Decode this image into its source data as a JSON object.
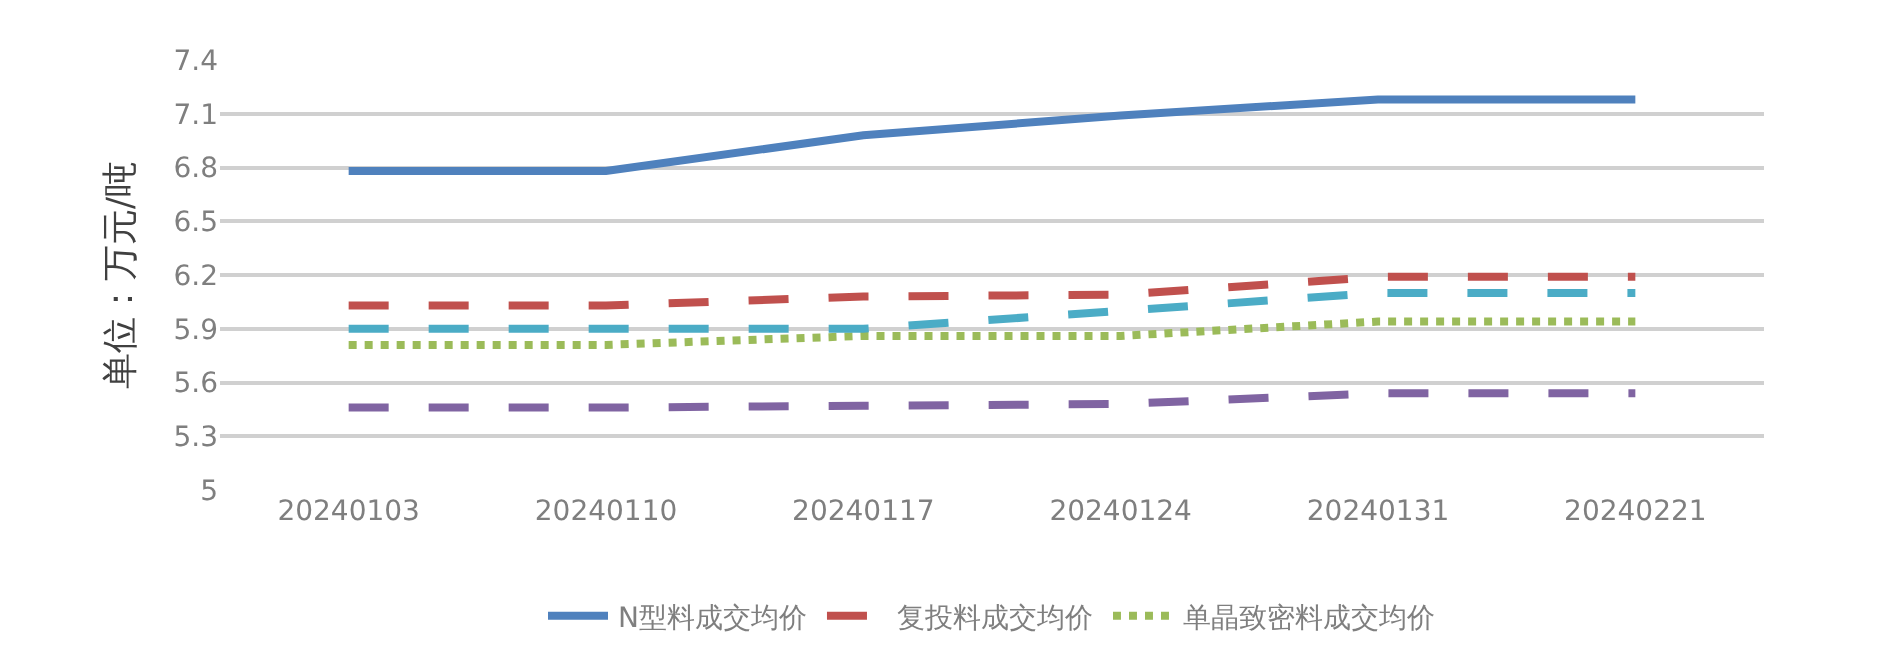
{
  "chart_data": {
    "type": "line",
    "ylabel": "单位：万元/吨",
    "categories": [
      "20240103",
      "20240110",
      "20240117",
      "20240124",
      "20240131",
      "20240221"
    ],
    "series": [
      {
        "name": "N型料成交均价",
        "color": "#4f81bd",
        "line_style": "solid",
        "values": [
          6.78,
          6.78,
          6.98,
          7.09,
          7.18,
          7.18
        ]
      },
      {
        "name": "复投料成交均价",
        "color": "#c0504d",
        "line_style": "dashed",
        "values": [
          6.03,
          6.03,
          6.08,
          6.09,
          6.19,
          6.19
        ]
      },
      {
        "name": "单晶致密料成交均价",
        "color": "#9bbb59",
        "line_style": "dotted",
        "values": [
          5.81,
          5.81,
          5.86,
          5.86,
          5.94,
          5.94
        ]
      },
      {
        "color": "#4bacc6",
        "line_style": "dashed",
        "values": [
          5.9,
          5.9,
          5.9,
          6.0,
          6.1,
          6.1
        ]
      },
      {
        "color": "#8064a2",
        "line_style": "dashed",
        "values": [
          5.46,
          5.46,
          5.47,
          5.48,
          5.54,
          5.54
        ]
      }
    ],
    "ylim": [
      5,
      7.4
    ],
    "yticks": [
      5,
      5.3,
      5.6,
      5.9,
      6.2,
      6.5,
      6.8,
      7.1,
      7.4
    ],
    "grid": "y",
    "legend": "bottom",
    "marker": "none"
  }
}
